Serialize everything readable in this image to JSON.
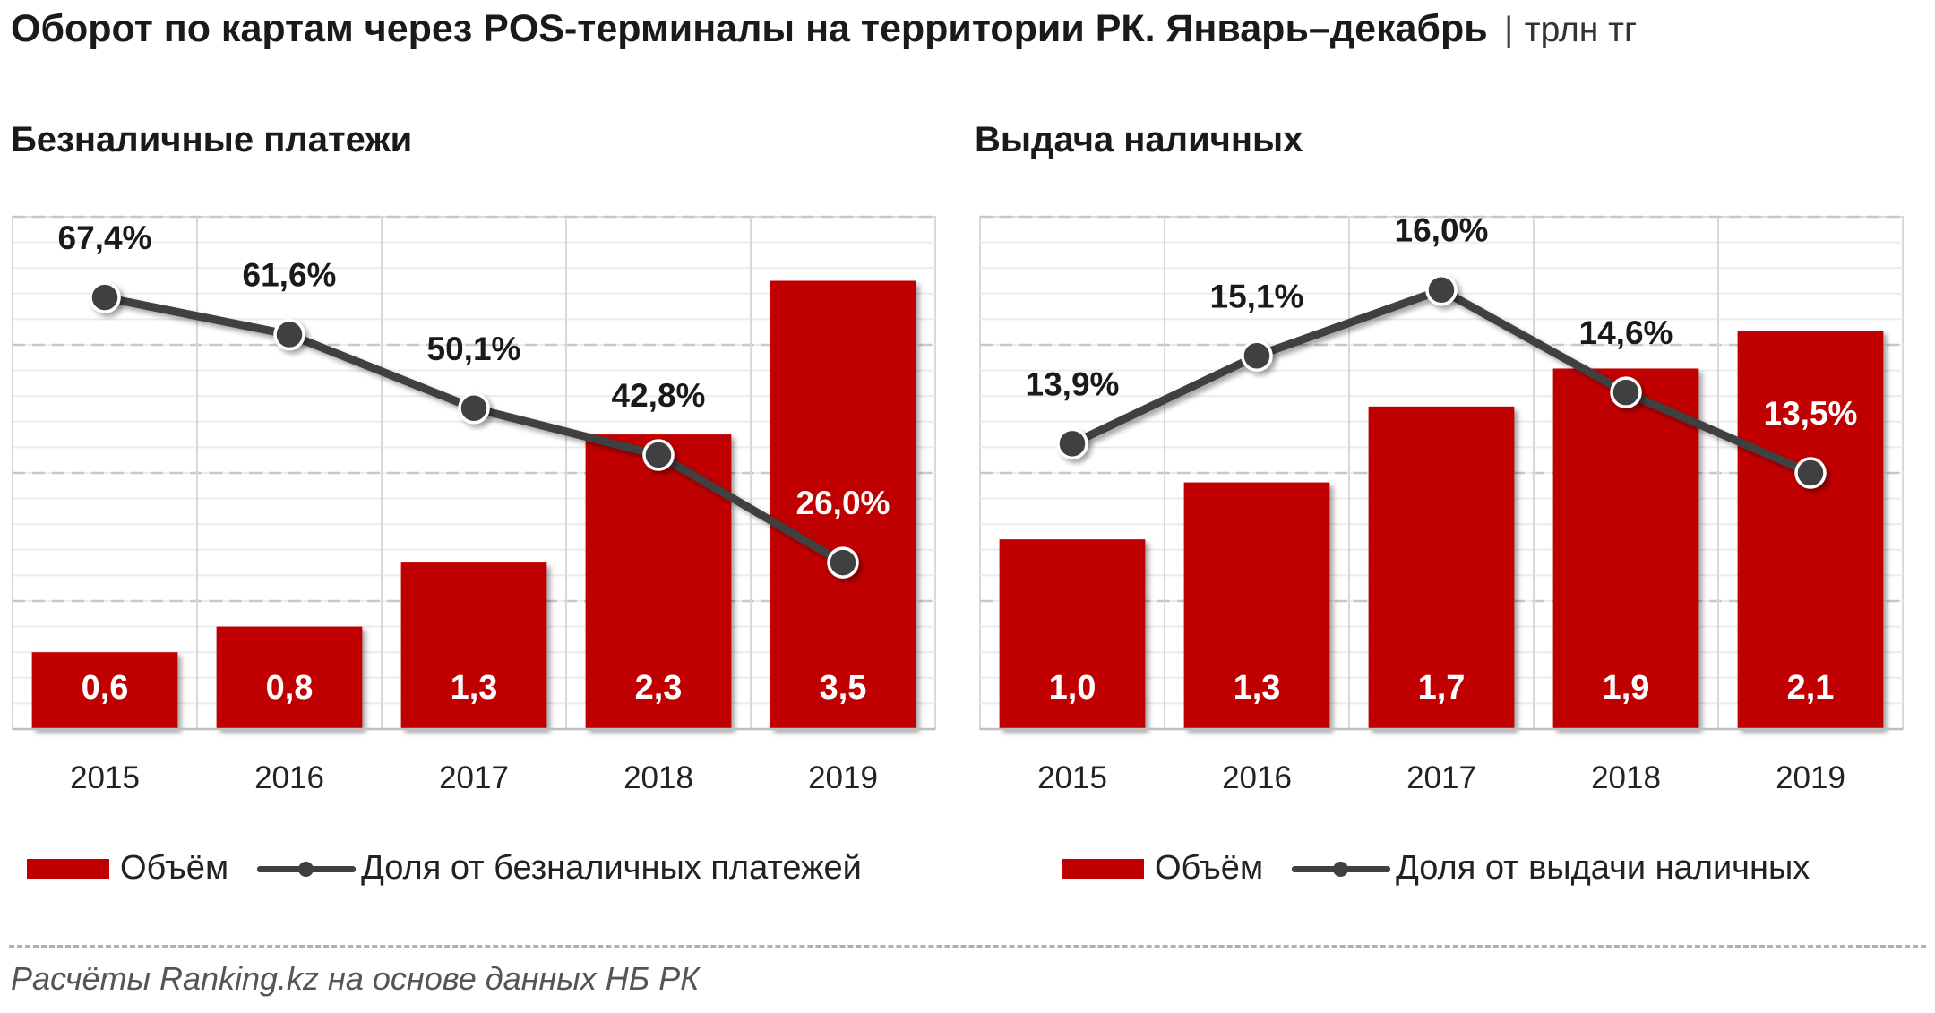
{
  "title": "Оборот по картам через POS-терминалы на территории РК. Январь–декабрь",
  "title_separator": "|",
  "unit": "трлн тг",
  "source": "Расчёты Ranking.kz на основе данных НБ РК",
  "colors": {
    "bar": "#c00000",
    "line": "#404040"
  },
  "chart_data": [
    {
      "type": "bar",
      "title": "Безналичные платежи",
      "categories": [
        "2015",
        "2016",
        "2017",
        "2018",
        "2019"
      ],
      "series": [
        {
          "name": "Объём",
          "type": "bar",
          "values": [
            0.6,
            0.8,
            1.3,
            2.3,
            3.5
          ],
          "labels": [
            "0,6",
            "0,8",
            "1,3",
            "2,3",
            "3,5"
          ]
        },
        {
          "name": "Доля от безналичных платежей",
          "type": "line",
          "values": [
            67.4,
            61.6,
            50.1,
            42.8,
            26.0
          ],
          "labels": [
            "67,4%",
            "61,6%",
            "50,1%",
            "42,8%",
            "26,0%"
          ]
        }
      ],
      "ylim": [
        0,
        4
      ],
      "y2lim": [
        0,
        80
      ],
      "grid": true,
      "legend": "bottom"
    },
    {
      "type": "bar",
      "title": "Выдача наличных",
      "categories": [
        "2015",
        "2016",
        "2017",
        "2018",
        "2019"
      ],
      "series": [
        {
          "name": "Объём",
          "type": "bar",
          "values": [
            1.0,
            1.3,
            1.7,
            1.9,
            2.1
          ],
          "labels": [
            "1,0",
            "1,3",
            "1,7",
            "1,9",
            "2,1"
          ]
        },
        {
          "name": "Доля от выдачи наличных",
          "type": "line",
          "values": [
            13.9,
            15.1,
            16.0,
            14.6,
            13.5
          ],
          "labels": [
            "13,9%",
            "15,1%",
            "16,0%",
            "14,6%",
            "13,5%"
          ]
        }
      ],
      "ylim": [
        0,
        2.7
      ],
      "y2lim": [
        10,
        17
      ],
      "grid": true,
      "legend": "bottom"
    }
  ]
}
